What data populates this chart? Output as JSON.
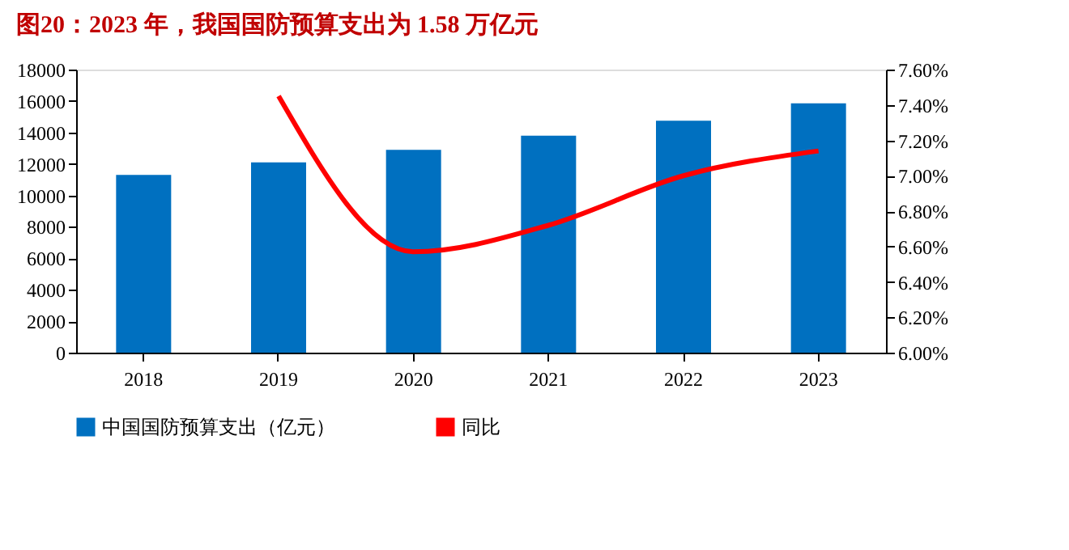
{
  "chart_data": {
    "type": "bar",
    "title": "图20：2023 年，我国国防预算支出为 1.58 万亿元",
    "categories": [
      "2018",
      "2019",
      "2020",
      "2021",
      "2022",
      "2023"
    ],
    "series": [
      {
        "name": "中国国防预算支出（亿元）",
        "color": "#0070c0",
        "values": [
          11300,
          12100,
          12900,
          13800,
          14750,
          15850
        ]
      },
      {
        "name": "同比",
        "type": "line",
        "axis": "y2",
        "color": "#ff0000",
        "values": [
          null,
          7.45,
          6.57,
          6.72,
          7.0,
          7.14
        ]
      }
    ],
    "ylim": [
      0,
      18000
    ],
    "yticks": [
      0,
      2000,
      4000,
      6000,
      8000,
      10000,
      12000,
      14000,
      16000,
      18000
    ],
    "y2lim": [
      6.0,
      7.6
    ],
    "y2ticks": [
      {
        "value": 6.0,
        "label": "6.00%"
      },
      {
        "value": 6.2,
        "label": "6.20%"
      },
      {
        "value": 6.4,
        "label": "6.40%"
      },
      {
        "value": 6.6,
        "label": "6.60%"
      },
      {
        "value": 6.8,
        "label": "6.80%"
      },
      {
        "value": 7.0,
        "label": "7.00%"
      },
      {
        "value": 7.2,
        "label": "7.20%"
      },
      {
        "value": 7.4,
        "label": "7.40%"
      },
      {
        "value": 7.6,
        "label": "7.60%"
      }
    ],
    "legend": "bottom",
    "grid": false,
    "marker": "none",
    "line_style": "solid"
  }
}
